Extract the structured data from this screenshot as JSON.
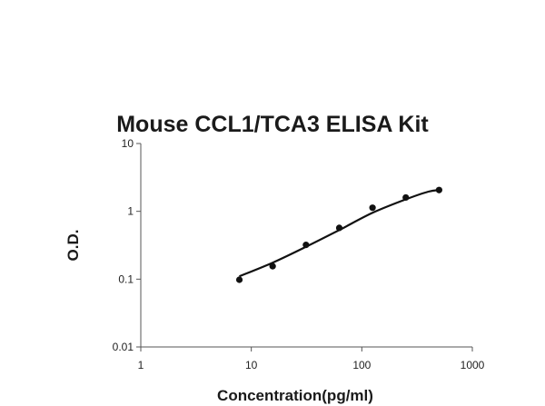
{
  "chart_data": {
    "type": "scatter",
    "title": "Mouse CCL1/TCA3 ELISA Kit",
    "xlabel": "Concentration(pg/ml)",
    "ylabel": "O.D.",
    "x_scale": "log",
    "y_scale": "log",
    "xlim": [
      1,
      1000
    ],
    "ylim": [
      0.01,
      10
    ],
    "x_ticks": [
      "1",
      "10",
      "100",
      "1000"
    ],
    "y_ticks": [
      "0.01",
      "0.1",
      "1",
      "10"
    ],
    "grid": false,
    "legend": "none",
    "series": [
      {
        "values": [
          {
            "x": 7.8,
            "y": 0.098
          },
          {
            "x": 15.6,
            "y": 0.155
          },
          {
            "x": 31.25,
            "y": 0.32
          },
          {
            "x": 62.5,
            "y": 0.57
          },
          {
            "x": 125,
            "y": 1.13
          },
          {
            "x": 250,
            "y": 1.6
          },
          {
            "x": 500,
            "y": 2.06
          }
        ]
      }
    ],
    "fit_curve": {
      "type": "four-parameter logistic",
      "points": [
        {
          "x": 7.8,
          "y": 0.11
        },
        {
          "x": 15.6,
          "y": 0.175
        },
        {
          "x": 31.25,
          "y": 0.3
        },
        {
          "x": 62.5,
          "y": 0.53
        },
        {
          "x": 125,
          "y": 0.95
        },
        {
          "x": 250,
          "y": 1.5
        },
        {
          "x": 400,
          "y": 1.95
        },
        {
          "x": 500,
          "y": 2.06
        }
      ]
    },
    "colors": {
      "marker": "#111111",
      "curve": "#111111",
      "axis": "#555555",
      "text": "#1a1a1a"
    }
  }
}
